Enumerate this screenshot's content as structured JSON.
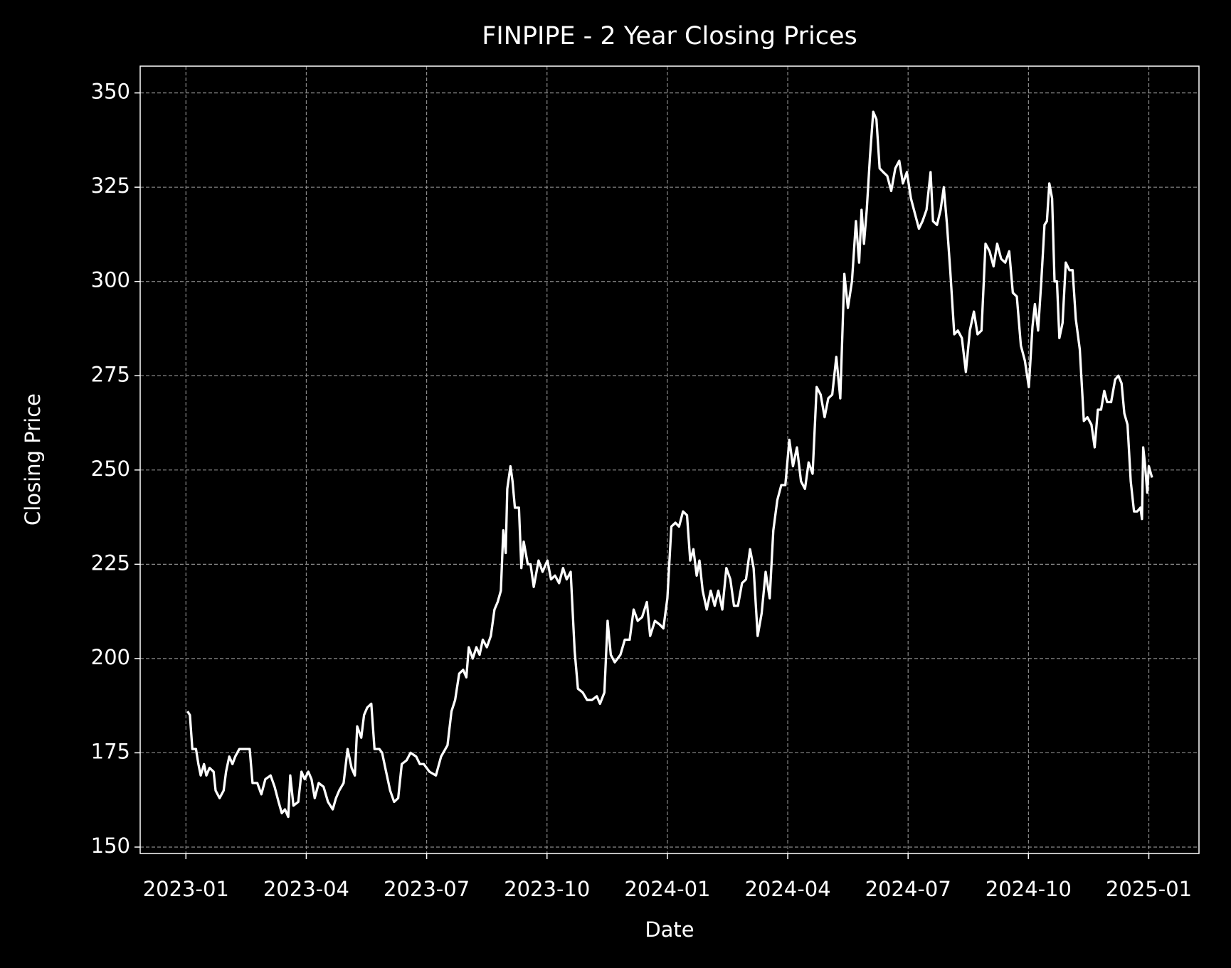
{
  "chart_data": {
    "type": "line",
    "title": "FINPIPE - 2 Year Closing Prices",
    "x_label": "Date",
    "y_label": "Closing Price",
    "series": [
      {
        "name": "FINPIPE",
        "color": "#ffffff",
        "x": [
          0.04,
          0.1,
          0.16,
          0.25,
          0.31,
          0.37,
          0.45,
          0.51,
          0.59,
          0.69,
          0.74,
          0.84,
          0.94,
          1.0,
          1.08,
          1.16,
          1.23,
          1.33,
          1.47,
          1.59,
          1.66,
          1.78,
          1.88,
          1.98,
          2.11,
          2.21,
          2.31,
          2.39,
          2.47,
          2.55,
          2.6,
          2.68,
          2.8,
          2.88,
          2.96,
          3.05,
          3.13,
          3.21,
          3.31,
          3.43,
          3.54,
          3.66,
          3.74,
          3.82,
          3.93,
          4.03,
          4.13,
          4.21,
          4.27,
          4.37,
          4.44,
          4.52,
          4.62,
          4.7,
          4.82,
          4.89,
          4.99,
          5.09,
          5.19,
          5.29,
          5.38,
          5.5,
          5.6,
          5.74,
          5.83,
          5.93,
          6.07,
          6.23,
          6.36,
          6.52,
          6.62,
          6.71,
          6.81,
          6.91,
          6.99,
          7.05,
          7.15,
          7.24,
          7.32,
          7.4,
          7.5,
          7.6,
          7.69,
          7.77,
          7.85,
          7.91,
          7.97,
          8.01,
          8.09,
          8.14,
          8.2,
          8.3,
          8.36,
          8.42,
          8.52,
          8.59,
          8.67,
          8.79,
          8.89,
          9.01,
          9.1,
          9.2,
          9.3,
          9.4,
          9.49,
          9.59,
          9.69,
          9.77,
          9.89,
          10.0,
          10.12,
          10.24,
          10.32,
          10.43,
          10.51,
          10.59,
          10.69,
          10.83,
          10.94,
          11.06,
          11.16,
          11.26,
          11.37,
          11.49,
          11.57,
          11.69,
          11.81,
          11.9,
          12.0,
          12.1,
          12.2,
          12.29,
          12.39,
          12.49,
          12.57,
          12.65,
          12.73,
          12.8,
          12.88,
          12.98,
          13.08,
          13.18,
          13.27,
          13.37,
          13.47,
          13.57,
          13.66,
          13.76,
          13.86,
          13.96,
          14.06,
          14.15,
          14.25,
          14.35,
          14.45,
          14.55,
          14.64,
          14.74,
          14.84,
          14.94,
          15.04,
          15.13,
          15.23,
          15.33,
          15.43,
          15.52,
          15.62,
          15.72,
          15.82,
          15.92,
          16.01,
          16.11,
          16.21,
          16.31,
          16.41,
          16.5,
          16.6,
          16.7,
          16.78,
          16.84,
          16.9,
          16.97,
          17.05,
          17.13,
          17.21,
          17.29,
          17.38,
          17.48,
          17.58,
          17.68,
          17.78,
          17.87,
          17.97,
          18.07,
          18.17,
          18.27,
          18.36,
          18.46,
          18.56,
          18.62,
          18.72,
          18.81,
          18.89,
          18.97,
          19.05,
          19.15,
          19.24,
          19.34,
          19.44,
          19.54,
          19.64,
          19.73,
          19.83,
          19.93,
          20.03,
          20.13,
          20.22,
          20.32,
          20.42,
          20.52,
          20.61,
          20.71,
          20.81,
          20.91,
          21.01,
          21.1,
          21.16,
          21.24,
          21.32,
          21.4,
          21.46,
          21.52,
          21.59,
          21.65,
          21.71,
          21.77,
          21.85,
          21.93,
          22.02,
          22.1,
          22.18,
          22.28,
          22.38,
          22.47,
          22.57,
          22.65,
          22.73,
          22.81,
          22.89,
          22.96,
          23.06,
          23.16,
          23.24,
          23.32,
          23.39,
          23.47,
          23.55,
          23.63,
          23.71,
          23.79,
          23.83,
          23.86,
          23.9,
          23.96,
          24.0,
          24.08
        ],
        "values": [
          186,
          185,
          176,
          176,
          172,
          169,
          172,
          169,
          171,
          170,
          165,
          163,
          165,
          170,
          174,
          172,
          174,
          176,
          176,
          176,
          167,
          167,
          164,
          168,
          169,
          166,
          162,
          159,
          160,
          158,
          169,
          161,
          162,
          170,
          168,
          170,
          168,
          163,
          167,
          166,
          162,
          160,
          163,
          165,
          167,
          176,
          171,
          169,
          182,
          179,
          185,
          187,
          188,
          176,
          176,
          175,
          170,
          165,
          162,
          163,
          172,
          173,
          175,
          174,
          172,
          172,
          170,
          169,
          174,
          177,
          186,
          189,
          196,
          197,
          195,
          203,
          200,
          203,
          201,
          205,
          203,
          206,
          213,
          215,
          218,
          234,
          228,
          245,
          251,
          247,
          240,
          240,
          224,
          231,
          225,
          225,
          219,
          226,
          223,
          226,
          221,
          222,
          220,
          224,
          221,
          223,
          202,
          192,
          191,
          189,
          189,
          190,
          188,
          191,
          210,
          201,
          199,
          201,
          205,
          205,
          213,
          210,
          211,
          215,
          206,
          210,
          209,
          208,
          216,
          235,
          236,
          235,
          239,
          238,
          226,
          229,
          222,
          226,
          218,
          213,
          218,
          214,
          218,
          213,
          224,
          221,
          214,
          214,
          220,
          221,
          229,
          224,
          206,
          212,
          223,
          216,
          234,
          242,
          246,
          246,
          258,
          251,
          256,
          247,
          245,
          252,
          249,
          272,
          270,
          264,
          269,
          270,
          280,
          269,
          302,
          293,
          300,
          316,
          305,
          319,
          310,
          319,
          333,
          345,
          343,
          330,
          329,
          328,
          324,
          330,
          332,
          326,
          329,
          322,
          318,
          314,
          316,
          319,
          329,
          316,
          315,
          319,
          325,
          315,
          303,
          286,
          287,
          285,
          276,
          287,
          292,
          286,
          287,
          310,
          308,
          304,
          310,
          306,
          305,
          308,
          297,
          296,
          283,
          279,
          272,
          288,
          294,
          287,
          300,
          315,
          316,
          326,
          322,
          300,
          300,
          285,
          289,
          305,
          303,
          303,
          290,
          282,
          263,
          264,
          262,
          256,
          266,
          266,
          271,
          268,
          268,
          274,
          275,
          273,
          265,
          262,
          247,
          239,
          239,
          240,
          237,
          256,
          252,
          244,
          251,
          248
        ]
      }
    ],
    "xlim": [
      -1.14,
      25.25
    ],
    "xticks": [
      {
        "value": 0,
        "label": "2023-01"
      },
      {
        "value": 3,
        "label": "2023-04"
      },
      {
        "value": 6,
        "label": "2023-07"
      },
      {
        "value": 9,
        "label": "2023-10"
      },
      {
        "value": 12,
        "label": "2024-01"
      },
      {
        "value": 15,
        "label": "2024-04"
      },
      {
        "value": 18,
        "label": "2024-07"
      },
      {
        "value": 21,
        "label": "2024-10"
      },
      {
        "value": 24,
        "label": "2025-01"
      }
    ],
    "ylim": [
      148.3,
      357.1
    ],
    "yticks": [
      150,
      175,
      200,
      225,
      250,
      275,
      300,
      325,
      350
    ],
    "grid": true
  }
}
